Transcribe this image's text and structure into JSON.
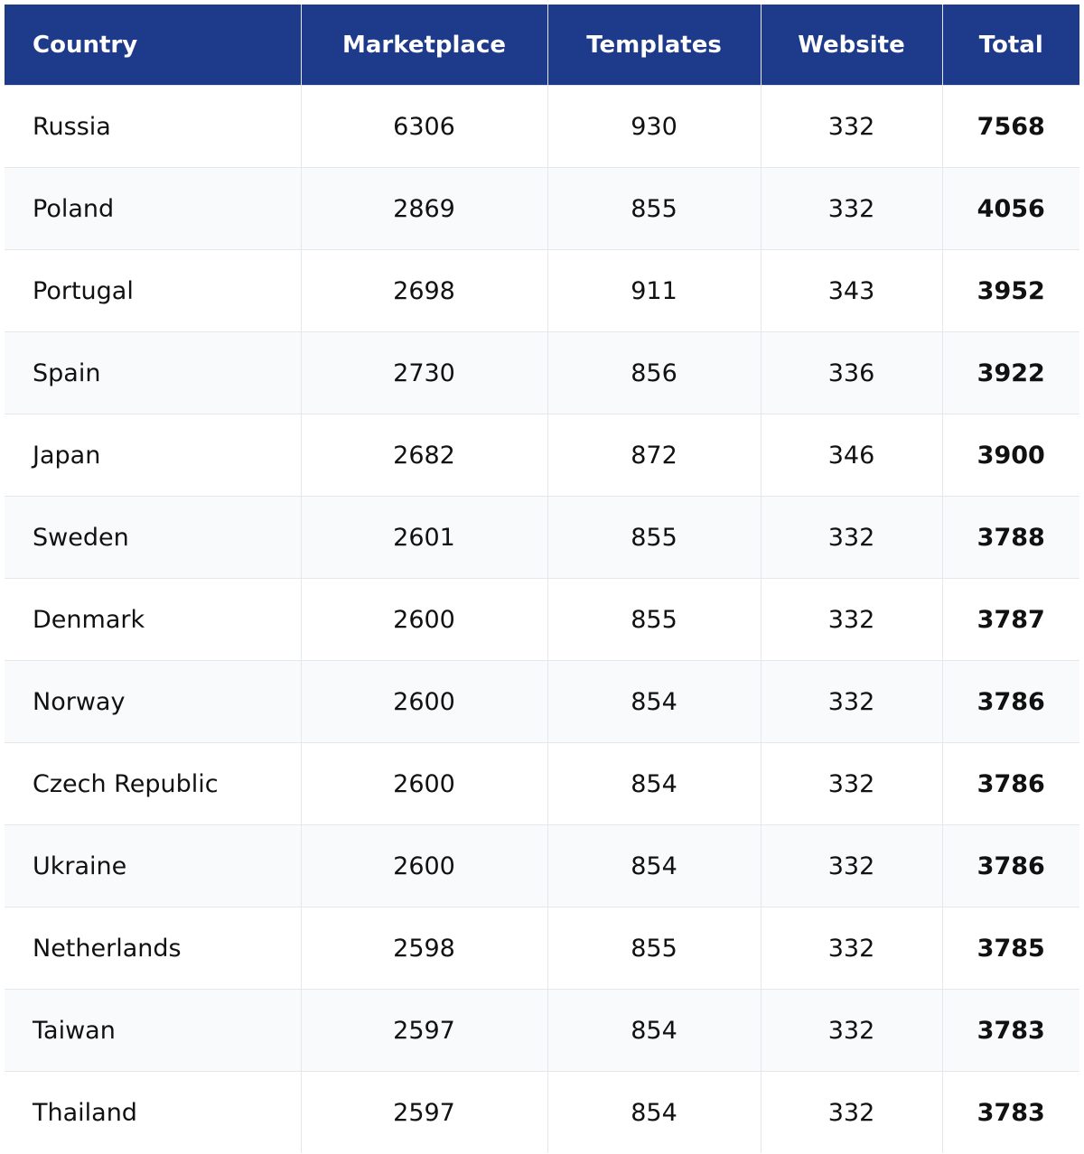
{
  "chart_data": {
    "type": "table",
    "columns": [
      "Country",
      "Marketplace",
      "Templates",
      "Website",
      "Total"
    ],
    "rows": [
      [
        "Russia",
        "6306",
        "930",
        "332",
        "7568"
      ],
      [
        "Poland",
        "2869",
        "855",
        "332",
        "4056"
      ],
      [
        "Portugal",
        "2698",
        "911",
        "343",
        "3952"
      ],
      [
        "Spain",
        "2730",
        "856",
        "336",
        "3922"
      ],
      [
        "Japan",
        "2682",
        "872",
        "346",
        "3900"
      ],
      [
        "Sweden",
        "2601",
        "855",
        "332",
        "3788"
      ],
      [
        "Denmark",
        "2600",
        "855",
        "332",
        "3787"
      ],
      [
        "Norway",
        "2600",
        "854",
        "332",
        "3786"
      ],
      [
        "Czech Republic",
        "2600",
        "854",
        "332",
        "3786"
      ],
      [
        "Ukraine",
        "2600",
        "854",
        "332",
        "3786"
      ],
      [
        "Netherlands",
        "2598",
        "855",
        "332",
        "3785"
      ],
      [
        "Taiwan",
        "2597",
        "854",
        "332",
        "3783"
      ],
      [
        "Thailand",
        "2597",
        "854",
        "332",
        "3783"
      ]
    ],
    "colors": {
      "header_bg": "#1e3a8a",
      "header_text": "#ffffff",
      "row_alt_bg": "#f8fafc",
      "grid": "#e5e7eb"
    }
  }
}
